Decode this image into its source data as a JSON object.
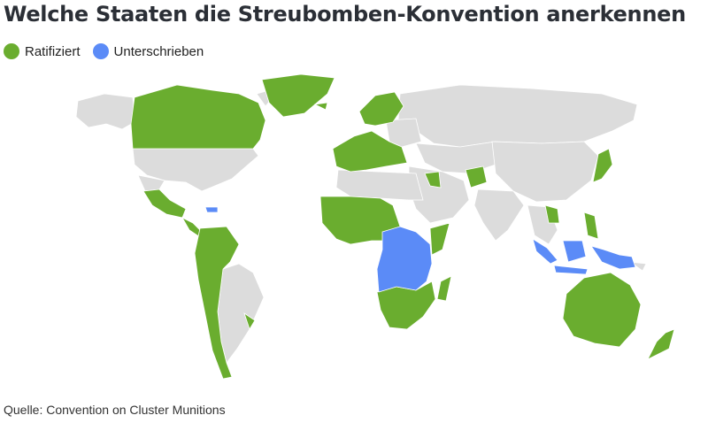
{
  "title": "Welche Staaten die Streubomben-Konvention anerkennen",
  "legend": {
    "ratified": {
      "label": "Ratifiziert",
      "color": "#6aad2f"
    },
    "signed": {
      "label": "Unterschrieben",
      "color": "#5b8bf7"
    }
  },
  "colors": {
    "none": "#dcdcdc",
    "ocean": "#ffffff"
  },
  "source": "Quelle: Convention on Cluster Munitions"
}
